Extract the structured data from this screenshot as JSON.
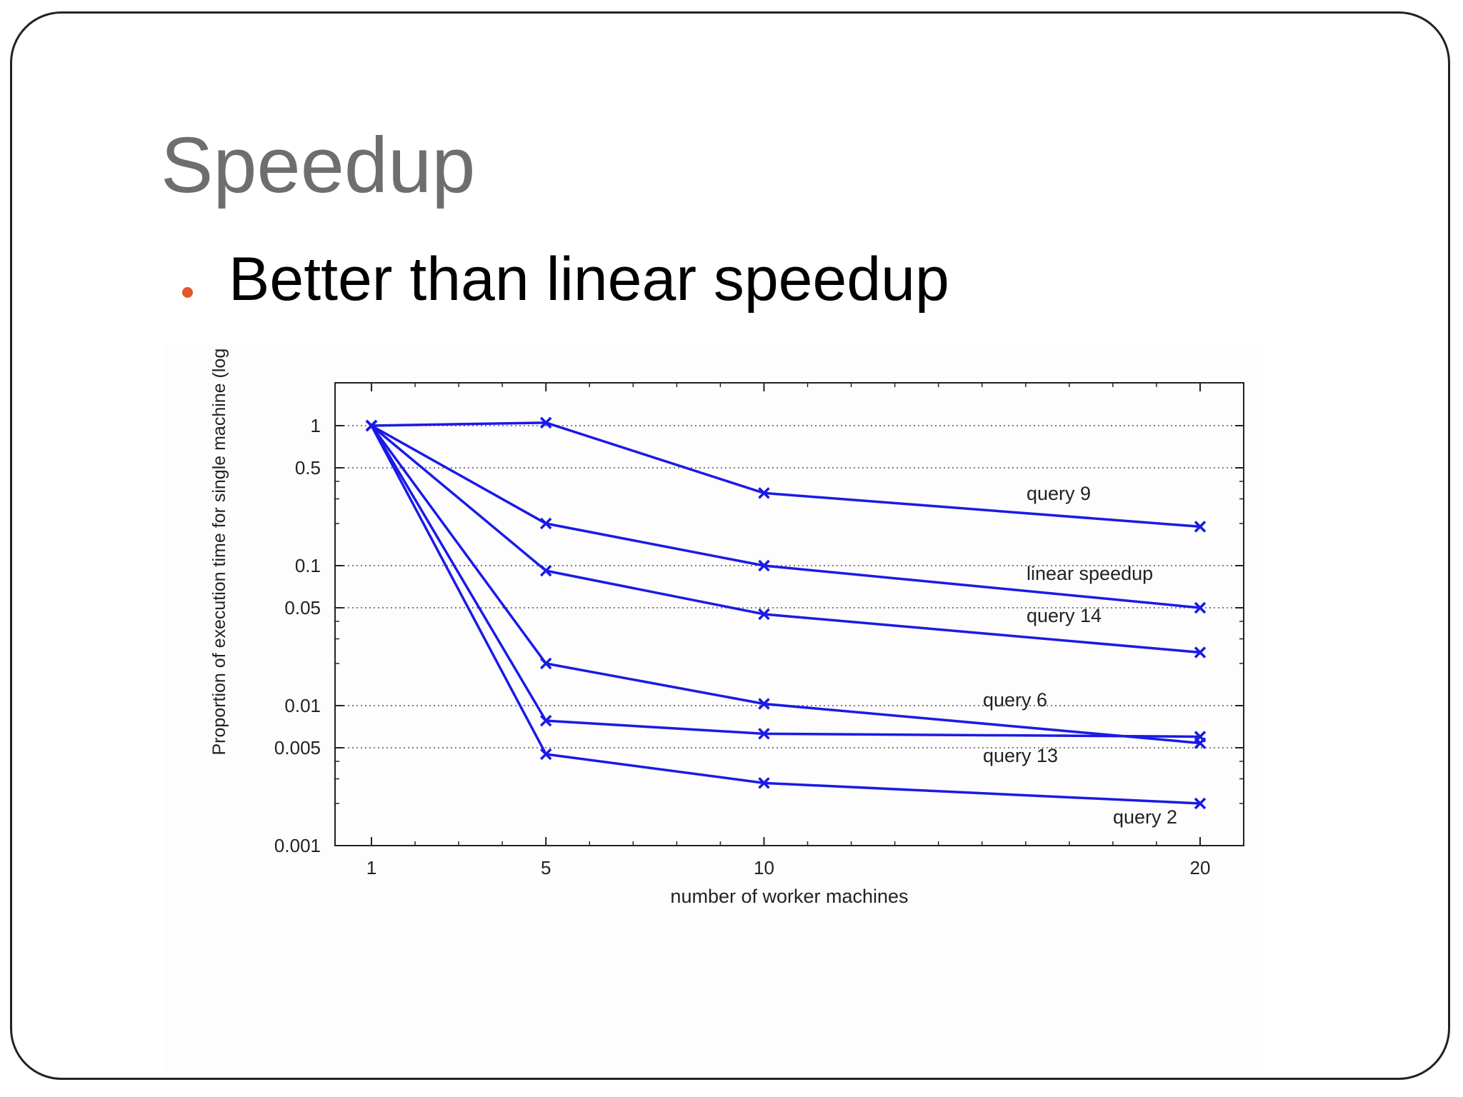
{
  "slide": {
    "title": "Speedup",
    "bullet_text": "Better than linear speedup",
    "bullet_color": "#e0582a"
  },
  "chart_data": {
    "type": "line",
    "title": "",
    "xlabel": "number of worker machines",
    "ylabel": "Proportion of execution time for single machine (log scale",
    "y_scale": "log",
    "x_ticks": [
      "1",
      "5",
      "10",
      "20"
    ],
    "y_ticks": [
      "1",
      "0.5",
      "0.1",
      "0.05",
      "0.01",
      "0.005",
      "0.001"
    ],
    "ylim": [
      0.001,
      2
    ],
    "grid": "horizontal dotted",
    "line_color": "#1a1ae6",
    "x": [
      1,
      5,
      10,
      20
    ],
    "series": [
      {
        "name": "query 9",
        "values": [
          1,
          1.05,
          0.33,
          0.19
        ]
      },
      {
        "name": "linear speedup",
        "values": [
          1,
          0.2,
          0.1,
          0.05
        ]
      },
      {
        "name": "query 14",
        "values": [
          1,
          0.092,
          0.045,
          0.024
        ]
      },
      {
        "name": "query 6",
        "values": [
          1,
          0.02,
          0.0103,
          0.0054
        ]
      },
      {
        "name": "query 13",
        "values": [
          1,
          0.0078,
          0.0063,
          0.006
        ]
      },
      {
        "name": "query 2",
        "values": [
          1,
          0.0045,
          0.0028,
          0.002
        ]
      }
    ]
  }
}
